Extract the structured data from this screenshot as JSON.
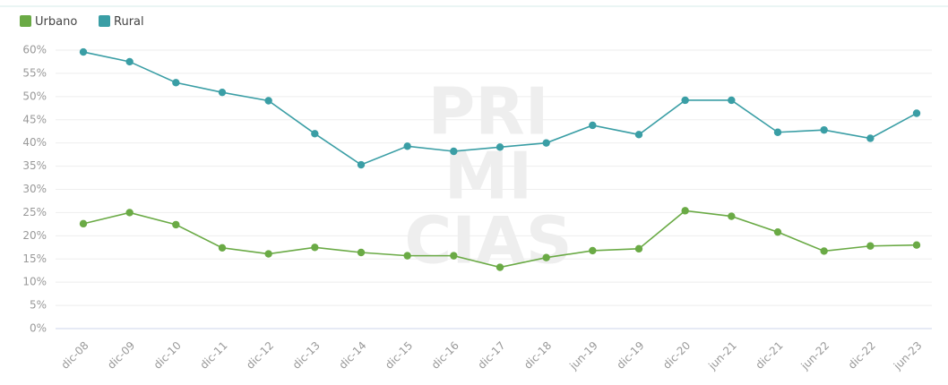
{
  "chart_data": {
    "type": "line",
    "categories": [
      "dic-08",
      "dic-09",
      "dic-10",
      "dic-11",
      "dic-12",
      "dic-13",
      "dic-14",
      "dic-15",
      "dic-16",
      "dic-17",
      "dic-18",
      "jun-19",
      "dic-19",
      "dic-20",
      "jun-21",
      "dic-21",
      "jun-22",
      "dic-22",
      "jun-23"
    ],
    "series": [
      {
        "name": "Urbano",
        "color": "#6aaa45",
        "values": [
          22.6,
          25,
          22.4,
          17.4,
          16.1,
          17.5,
          16.4,
          15.7,
          15.7,
          13.2,
          15.3,
          16.8,
          17.2,
          25.4,
          24.2,
          20.8,
          16.7,
          17.8,
          18
        ]
      },
      {
        "name": "Rural",
        "color": "#3a9ea5",
        "values": [
          59.6,
          57.5,
          53,
          50.9,
          49.1,
          42,
          35.3,
          39.3,
          38.2,
          39.1,
          40,
          43.8,
          41.8,
          49.2,
          49.2,
          42.3,
          42.8,
          41,
          46.4
        ]
      }
    ],
    "ylim": [
      0,
      60
    ],
    "yticks": [
      {
        "value": 0,
        "label": "0%"
      },
      {
        "value": 5,
        "label": "5%"
      },
      {
        "value": 10,
        "label": "10%"
      },
      {
        "value": 15,
        "label": "15%"
      },
      {
        "value": 20,
        "label": "20%"
      },
      {
        "value": 25,
        "label": "25%"
      },
      {
        "value": 30,
        "label": "30%"
      },
      {
        "value": 35,
        "label": "35%"
      },
      {
        "value": 40,
        "label": "40%"
      },
      {
        "value": 45,
        "label": "45%"
      },
      {
        "value": 50,
        "label": "50%"
      },
      {
        "value": 55,
        "label": "55%"
      },
      {
        "value": 60,
        "label": "60%"
      }
    ],
    "grid": true,
    "watermark": [
      "PRI",
      "MI",
      "CIAS"
    ]
  }
}
